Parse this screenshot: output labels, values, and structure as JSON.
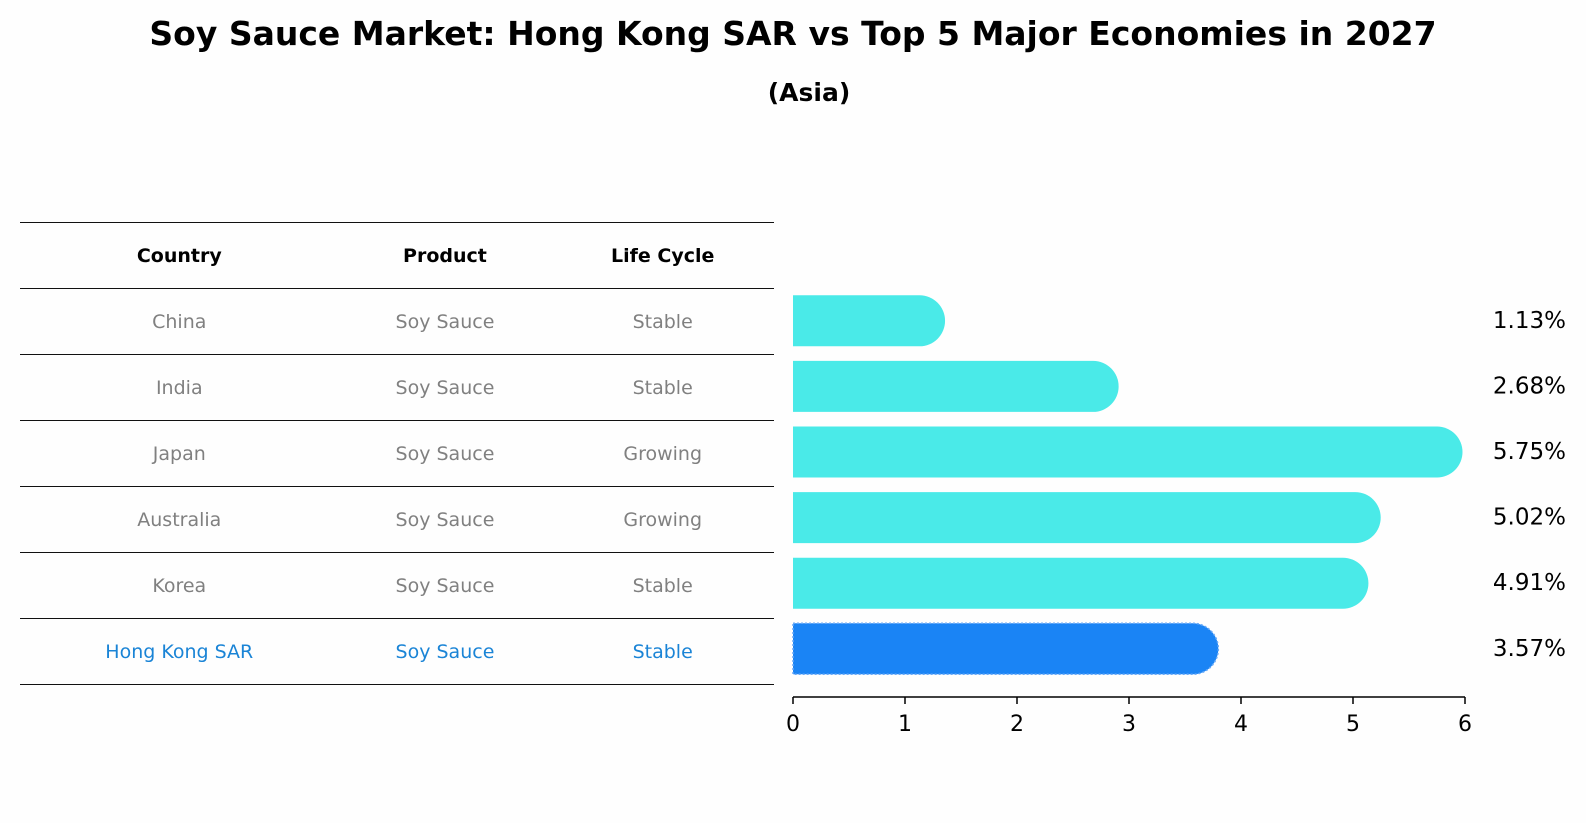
{
  "title": "Soy Sauce Market: Hong Kong SAR vs Top 5 Major Economies in 2027",
  "subtitle": "(Asia)",
  "table": {
    "headers": [
      "Country",
      "Product",
      "Life Cycle"
    ],
    "rows": [
      {
        "country": "China",
        "product": "Soy Sauce",
        "life_cycle": "Stable"
      },
      {
        "country": "India",
        "product": "Soy Sauce",
        "life_cycle": "Stable"
      },
      {
        "country": "Japan",
        "product": "Soy Sauce",
        "life_cycle": "Growing"
      },
      {
        "country": "Australia",
        "product": "Soy Sauce",
        "life_cycle": "Growing"
      },
      {
        "country": "Korea",
        "product": "Soy Sauce",
        "life_cycle": "Stable"
      },
      {
        "country": "Hong Kong SAR",
        "product": "Soy Sauce",
        "life_cycle": "Stable"
      }
    ]
  },
  "colors": {
    "bar": "#4aeae8",
    "highlight_bar": "#1a84f5",
    "highlight_text": "#1a84d6",
    "muted_text": "#808080"
  },
  "chart_data": {
    "type": "bar",
    "orientation": "horizontal",
    "categories": [
      "China",
      "India",
      "Japan",
      "Australia",
      "Korea",
      "Hong Kong SAR"
    ],
    "values": [
      1.13,
      2.68,
      5.75,
      5.02,
      4.91,
      3.57
    ],
    "value_labels": [
      "1.13%",
      "2.68%",
      "5.75%",
      "5.02%",
      "4.91%",
      "3.57%"
    ],
    "highlight": "Hong Kong SAR",
    "xlim": [
      0,
      6
    ],
    "xticks": [
      0,
      1,
      2,
      3,
      4,
      5,
      6
    ],
    "grid": false
  }
}
